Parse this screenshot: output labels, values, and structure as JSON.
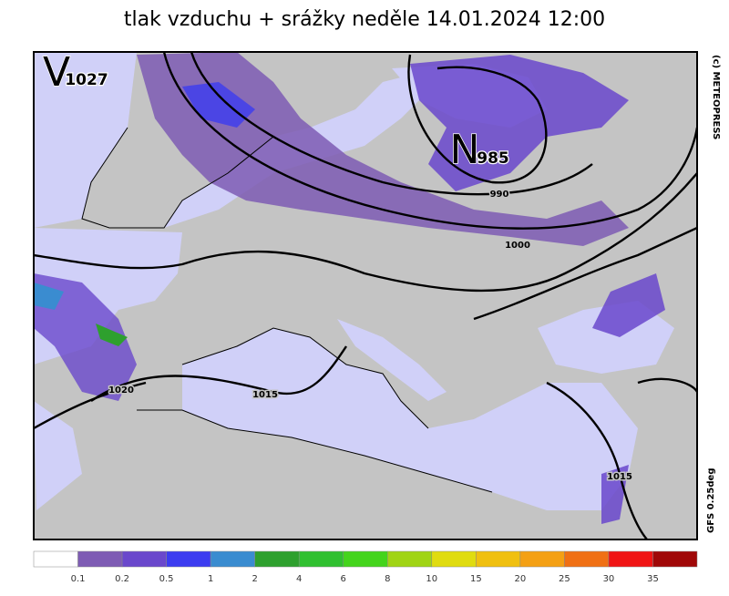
{
  "title": "tlak vzduchu + srážky  neděle 14.01.2024 12:00",
  "map": {
    "pressure_centers": [
      {
        "letter": "V",
        "value": "1027"
      },
      {
        "letter": "N",
        "value": "985"
      }
    ],
    "isobar_labels": [
      "990",
      "1000",
      "1015",
      "1020",
      "1015"
    ]
  },
  "legend": {
    "colors": [
      "#ffffff",
      "#7e5cb4",
      "#6a48cc",
      "#3c3cf0",
      "#3a8cd0",
      "#2ea02e",
      "#30c030",
      "#44d41c",
      "#a0d414",
      "#e0dc10",
      "#f0c010",
      "#f4a014",
      "#f07014",
      "#f01414",
      "#a00808"
    ],
    "labels": [
      "0.1",
      "0.2",
      "0.5",
      "1",
      "2",
      "4",
      "6",
      "8",
      "10",
      "15",
      "20",
      "25",
      "30",
      "35"
    ]
  },
  "credits": {
    "copyright": "(c) METEOPRESS",
    "model": "GFS  0.25deg"
  }
}
